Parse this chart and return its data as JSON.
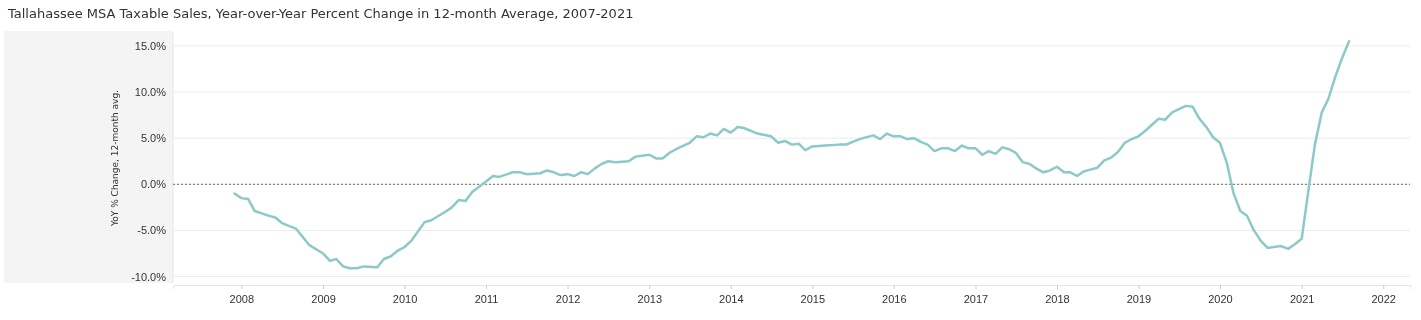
{
  "chart_data": {
    "type": "line",
    "title": "Tallahassee MSA Taxable Sales, Year-over-Year Percent Change in 12-month Average, 2007-2021",
    "ylabel": "YoY % Change, 12-month avg.",
    "xlim": [
      "2007-03",
      "2022-05"
    ],
    "xticks": [
      {
        "value": "2008",
        "label": "2008"
      },
      {
        "value": "2009",
        "label": "2009"
      },
      {
        "value": "2010",
        "label": "2010"
      },
      {
        "value": "2011",
        "label": "2011"
      },
      {
        "value": "2012",
        "label": "2012"
      },
      {
        "value": "2013",
        "label": "2013"
      },
      {
        "value": "2014",
        "label": "2014"
      },
      {
        "value": "2015",
        "label": "2015"
      },
      {
        "value": "2016",
        "label": "2016"
      },
      {
        "value": "2017",
        "label": "2017"
      },
      {
        "value": "2018",
        "label": "2018"
      },
      {
        "value": "2019",
        "label": "2019"
      },
      {
        "value": "2020",
        "label": "2020"
      },
      {
        "value": "2021",
        "label": "2021"
      },
      {
        "value": "2022",
        "label": "2022"
      }
    ],
    "ylim": [
      -10.7,
      16.4
    ],
    "yticks": [
      {
        "value": -10,
        "label": "-10.0%"
      },
      {
        "value": -5,
        "label": "-5.0%"
      },
      {
        "value": 0,
        "label": "0.0%"
      },
      {
        "value": 5,
        "label": "5.0%"
      },
      {
        "value": 10,
        "label": "10.0%"
      },
      {
        "value": 15,
        "label": "15.0%"
      }
    ],
    "grid": "y",
    "marker": "none",
    "line_style": "solid",
    "ref_lines": [
      {
        "axis": "y",
        "value": 0,
        "color": "#888888",
        "line_style": "dotted"
      }
    ],
    "x": [
      "2007-12",
      "2008-01",
      "2008-02",
      "2008-03",
      "2008-05",
      "2008-06",
      "2008-07",
      "2008-09",
      "2008-11",
      "2009-01",
      "2009-02",
      "2009-03",
      "2009-04",
      "2009-05",
      "2009-06",
      "2009-07",
      "2009-09",
      "2009-10",
      "2009-11",
      "2009-12",
      "2010-01",
      "2010-02",
      "2010-04",
      "2010-05",
      "2010-07",
      "2010-08",
      "2010-09",
      "2010-10",
      "2010-11",
      "2011-01",
      "2011-02",
      "2011-03",
      "2011-05",
      "2011-06",
      "2011-07",
      "2011-09",
      "2011-10",
      "2011-11",
      "2011-12",
      "2012-01",
      "2012-02",
      "2012-03",
      "2012-04",
      "2012-05",
      "2012-06",
      "2012-07",
      "2012-08",
      "2012-10",
      "2012-11",
      "2013-01",
      "2013-02",
      "2013-03",
      "2013-04",
      "2013-05",
      "2013-07",
      "2013-08",
      "2013-09",
      "2013-10",
      "2013-11",
      "2013-12",
      "2014-01",
      "2014-02",
      "2014-03",
      "2014-05",
      "2014-07",
      "2014-08",
      "2014-09",
      "2014-10",
      "2014-11",
      "2014-12",
      "2015-01",
      "2015-03",
      "2015-05",
      "2015-06",
      "2015-08",
      "2015-10",
      "2015-11",
      "2015-12",
      "2016-01",
      "2016-02",
      "2016-03",
      "2016-04",
      "2016-05",
      "2016-06",
      "2016-07",
      "2016-08",
      "2016-09",
      "2016-10",
      "2016-11",
      "2016-12",
      "2017-01",
      "2017-02",
      "2017-03",
      "2017-04",
      "2017-05",
      "2017-06",
      "2017-07",
      "2017-08",
      "2017-09",
      "2017-10",
      "2017-11",
      "2017-12",
      "2018-01",
      "2018-02",
      "2018-03",
      "2018-04",
      "2018-05",
      "2018-07",
      "2018-08",
      "2018-09",
      "2018-10",
      "2018-11",
      "2018-12",
      "2019-01",
      "2019-02",
      "2019-04",
      "2019-05",
      "2019-06",
      "2019-08",
      "2019-09",
      "2019-10",
      "2019-11",
      "2019-12",
      "2020-01",
      "2020-02",
      "2020-03",
      "2020-04",
      "2020-05",
      "2020-06",
      "2020-07",
      "2020-08",
      "2020-10",
      "2020-11",
      "2020-12",
      "2021-01",
      "2021-02",
      "2021-03",
      "2021-04",
      "2021-05",
      "2021-06",
      "2021-07",
      "2021-08"
    ],
    "series": [
      {
        "color": "#8cc9c9",
        "values": [
          -1.0,
          -1.5,
          -1.6,
          -2.9,
          -3.4,
          -3.6,
          -4.2,
          -4.8,
          -6.6,
          -7.5,
          -8.3,
          -8.1,
          -8.9,
          -9.1,
          -9.1,
          -8.9,
          -9.0,
          -8.1,
          -7.8,
          -7.2,
          -6.8,
          -6.1,
          -4.1,
          -3.9,
          -3.0,
          -2.5,
          -1.7,
          -1.8,
          -0.8,
          0.3,
          0.9,
          0.8,
          1.3,
          1.3,
          1.1,
          1.2,
          1.5,
          1.3,
          1.0,
          1.1,
          0.9,
          1.3,
          1.1,
          1.7,
          2.2,
          2.5,
          2.4,
          2.5,
          3.0,
          3.2,
          2.8,
          2.8,
          3.4,
          3.8,
          4.5,
          5.2,
          5.1,
          5.5,
          5.3,
          6.0,
          5.6,
          6.2,
          6.1,
          5.5,
          5.2,
          4.5,
          4.7,
          4.3,
          4.4,
          3.7,
          4.1,
          4.2,
          4.3,
          4.3,
          4.9,
          5.3,
          4.9,
          5.5,
          5.2,
          5.2,
          4.9,
          5.0,
          4.6,
          4.3,
          3.6,
          3.9,
          3.9,
          3.6,
          4.2,
          3.9,
          3.9,
          3.2,
          3.6,
          3.3,
          4.0,
          3.8,
          3.4,
          2.4,
          2.2,
          1.7,
          1.3,
          1.5,
          1.9,
          1.3,
          1.3,
          0.9,
          1.4,
          1.8,
          2.6,
          2.9,
          3.5,
          4.5,
          4.9,
          5.2,
          5.8,
          7.1,
          7.0,
          7.8,
          8.5,
          8.4,
          7.1,
          6.2,
          5.1,
          4.5,
          2.3,
          -0.9,
          -2.9,
          -3.4,
          -5.0,
          -6.1,
          -6.9,
          -6.7,
          -7.0,
          -6.5,
          -5.9,
          -0.5,
          4.3,
          7.8,
          9.3,
          11.7,
          13.7,
          15.5
        ]
      }
    ]
  }
}
